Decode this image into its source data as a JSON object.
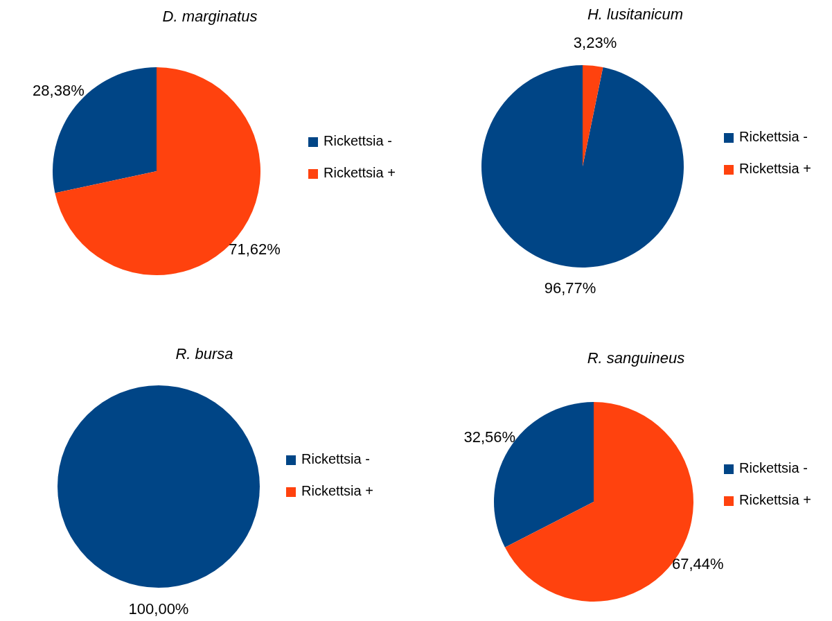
{
  "chart_data": [
    {
      "type": "pie",
      "title": "D. marginatus",
      "categories": [
        "Rickettsia -",
        "Rickettsia +"
      ],
      "values": [
        28.38,
        71.62
      ],
      "colors": [
        "#004586",
        "#ff420e"
      ],
      "value_labels": [
        "28,38%",
        "71,62%"
      ],
      "legend": "right"
    },
    {
      "type": "pie",
      "title": "H. lusitanicum",
      "categories": [
        "Rickettsia -",
        "Rickettsia +"
      ],
      "values": [
        96.77,
        3.23
      ],
      "colors": [
        "#004586",
        "#ff420e"
      ],
      "value_labels": [
        "96,77%",
        "3,23%"
      ],
      "legend": "right"
    },
    {
      "type": "pie",
      "title": "R. bursa",
      "categories": [
        "Rickettsia -",
        "Rickettsia +"
      ],
      "values": [
        100,
        0
      ],
      "colors": [
        "#004586",
        "#ff420e"
      ],
      "value_labels": [
        "100,00%",
        null
      ],
      "legend": "right"
    },
    {
      "type": "pie",
      "title": "R. sanguineus",
      "categories": [
        "Rickettsia -",
        "Rickettsia +"
      ],
      "values": [
        32.56,
        67.44
      ],
      "colors": [
        "#004586",
        "#ff420e"
      ],
      "value_labels": [
        "32,56%",
        "67,44%"
      ],
      "legend": "right"
    }
  ]
}
